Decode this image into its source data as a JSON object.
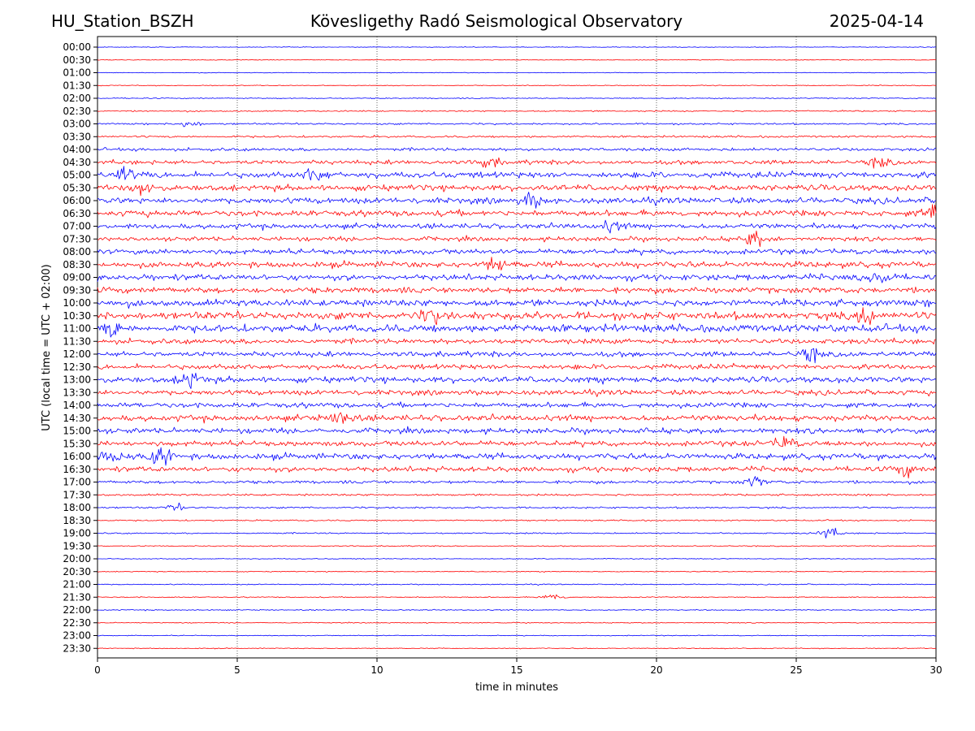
{
  "header": {
    "station": "HU_Station_BSZH",
    "title": "Kövesligethy Radó Seismological Observatory",
    "date": "2025-04-14"
  },
  "chart_data": {
    "type": "line",
    "xlabel": "time in minutes",
    "ylabel": "UTC (local time = UTC + 02:00)",
    "xlim": [
      0,
      30
    ],
    "x_ticks": [
      "0",
      "5",
      "10",
      "15",
      "20",
      "25",
      "30"
    ],
    "grid": "vertical dotted lines at 5-minute intervals",
    "row_labels": [
      "00:00",
      "00:30",
      "01:00",
      "01:30",
      "02:00",
      "02:30",
      "03:00",
      "03:30",
      "04:00",
      "04:30",
      "05:00",
      "05:30",
      "06:00",
      "06:30",
      "07:00",
      "07:30",
      "08:00",
      "08:30",
      "09:00",
      "09:30",
      "10:00",
      "10:30",
      "11:00",
      "11:30",
      "12:00",
      "12:30",
      "13:00",
      "13:30",
      "14:00",
      "14:30",
      "15:00",
      "15:30",
      "16:00",
      "16:30",
      "17:00",
      "17:30",
      "18:00",
      "18:30",
      "19:00",
      "19:30",
      "20:00",
      "20:30",
      "21:00",
      "21:30",
      "22:00",
      "22:30",
      "23:00",
      "23:30"
    ],
    "colors": [
      "#0000ff",
      "#ff0000"
    ],
    "row_amplitude": [
      0.4,
      0.4,
      0.4,
      0.5,
      0.6,
      0.8,
      1.0,
      1.2,
      1.8,
      2.5,
      3.5,
      3.5,
      3.5,
      3.5,
      3.0,
      2.5,
      3.0,
      3.5,
      3.5,
      3.5,
      4.0,
      4.5,
      4.5,
      3.0,
      3.0,
      3.0,
      3.5,
      3.0,
      3.0,
      3.5,
      3.0,
      3.0,
      3.5,
      3.0,
      1.8,
      1.2,
      1.0,
      0.8,
      0.8,
      0.6,
      0.5,
      0.5,
      0.6,
      0.6,
      0.6,
      0.5,
      0.5,
      0.5
    ],
    "bursts": [
      {
        "row": 6,
        "x": 3.3,
        "amp": 4
      },
      {
        "row": 9,
        "x": 14.0,
        "amp": 5
      },
      {
        "row": 9,
        "x": 28.0,
        "amp": 5
      },
      {
        "row": 10,
        "x": 1.0,
        "amp": 7
      },
      {
        "row": 10,
        "x": 7.8,
        "amp": 7
      },
      {
        "row": 11,
        "x": 1.6,
        "amp": 8
      },
      {
        "row": 12,
        "x": 15.5,
        "amp": 7
      },
      {
        "row": 13,
        "x": 29.9,
        "amp": 9
      },
      {
        "row": 14,
        "x": 18.4,
        "amp": 6
      },
      {
        "row": 15,
        "x": 23.5,
        "amp": 8
      },
      {
        "row": 17,
        "x": 14.3,
        "amp": 9
      },
      {
        "row": 18,
        "x": 28.0,
        "amp": 8
      },
      {
        "row": 21,
        "x": 27.5,
        "amp": 10
      },
      {
        "row": 21,
        "x": 12.0,
        "amp": 8
      },
      {
        "row": 22,
        "x": 0.5,
        "amp": 7
      },
      {
        "row": 24,
        "x": 25.5,
        "amp": 7
      },
      {
        "row": 26,
        "x": 3.3,
        "amp": 10
      },
      {
        "row": 29,
        "x": 8.8,
        "amp": 9
      },
      {
        "row": 31,
        "x": 24.6,
        "amp": 7
      },
      {
        "row": 32,
        "x": 2.3,
        "amp": 10
      },
      {
        "row": 32,
        "x": 0.5,
        "amp": 9
      },
      {
        "row": 33,
        "x": 28.9,
        "amp": 7
      },
      {
        "row": 34,
        "x": 23.5,
        "amp": 5
      },
      {
        "row": 36,
        "x": 2.8,
        "amp": 4
      },
      {
        "row": 38,
        "x": 26.2,
        "amp": 6
      },
      {
        "row": 43,
        "x": 16.3,
        "amp": 4
      }
    ]
  }
}
